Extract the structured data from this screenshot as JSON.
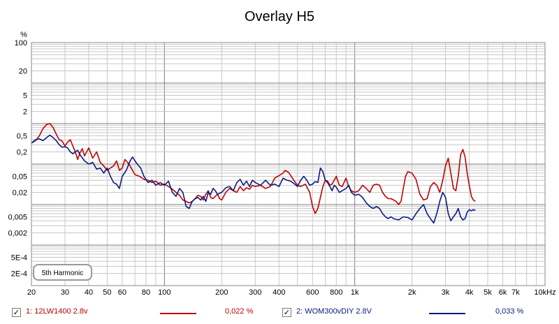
{
  "chart_data": {
    "type": "line",
    "title": "Overlay H5",
    "y_unit": "%",
    "x_scale": "log",
    "y_scale": "log",
    "xlim": [
      20,
      10000
    ],
    "ylim": [
      0.0001,
      100
    ],
    "grid": true,
    "x_ticks": [
      {
        "v": 20,
        "l": "20"
      },
      {
        "v": 30,
        "l": "30"
      },
      {
        "v": 40,
        "l": "40"
      },
      {
        "v": 50,
        "l": "50"
      },
      {
        "v": 60,
        "l": "60"
      },
      {
        "v": 80,
        "l": "80"
      },
      {
        "v": 100,
        "l": "100"
      },
      {
        "v": 200,
        "l": "200"
      },
      {
        "v": 300,
        "l": "300"
      },
      {
        "v": 400,
        "l": "400"
      },
      {
        "v": 600,
        "l": "600"
      },
      {
        "v": 800,
        "l": "800"
      },
      {
        "v": 1000,
        "l": "1k"
      },
      {
        "v": 2000,
        "l": "2k"
      },
      {
        "v": 3000,
        "l": "3k"
      },
      {
        "v": 4000,
        "l": "4k"
      },
      {
        "v": 5000,
        "l": "5k"
      },
      {
        "v": 6000,
        "l": "6k"
      },
      {
        "v": 7000,
        "l": "7k"
      },
      {
        "v": 10000,
        "l": "10kHz"
      }
    ],
    "y_ticks": [
      {
        "v": 100,
        "l": "100"
      },
      {
        "v": 20,
        "l": "20"
      },
      {
        "v": 5,
        "l": "5"
      },
      {
        "v": 2,
        "l": "2"
      },
      {
        "v": 0.5,
        "l": "0,5"
      },
      {
        "v": 0.2,
        "l": "0,2"
      },
      {
        "v": 0.05,
        "l": "0,05"
      },
      {
        "v": 0.02,
        "l": "0,02"
      },
      {
        "v": 0.005,
        "l": "0,005"
      },
      {
        "v": 0.002,
        "l": "0,002"
      },
      {
        "v": 0.0005,
        "l": "5E-4"
      },
      {
        "v": 0.0002,
        "l": "2E-4"
      }
    ],
    "annotation": "5th Harmonic",
    "series": [
      {
        "name": "1: 12LW1400 2.8v",
        "color": "#c00000",
        "summary": "0,022 %",
        "points": [
          [
            20,
            0.33
          ],
          [
            21,
            0.38
          ],
          [
            22,
            0.5
          ],
          [
            23,
            0.75
          ],
          [
            24,
            0.95
          ],
          [
            25,
            1.0
          ],
          [
            26,
            0.8
          ],
          [
            27,
            0.55
          ],
          [
            28,
            0.4
          ],
          [
            29,
            0.37
          ],
          [
            30,
            0.28
          ],
          [
            31,
            0.35
          ],
          [
            32,
            0.4
          ],
          [
            33,
            0.28
          ],
          [
            34,
            0.2
          ],
          [
            35,
            0.13
          ],
          [
            36,
            0.19
          ],
          [
            37,
            0.24
          ],
          [
            38,
            0.16
          ],
          [
            39,
            0.2
          ],
          [
            40,
            0.25
          ],
          [
            42,
            0.14
          ],
          [
            44,
            0.2
          ],
          [
            46,
            0.11
          ],
          [
            48,
            0.09
          ],
          [
            50,
            0.07
          ],
          [
            52,
            0.08
          ],
          [
            54,
            0.09
          ],
          [
            56,
            0.12
          ],
          [
            58,
            0.07
          ],
          [
            60,
            0.08
          ],
          [
            62,
            0.13
          ],
          [
            64,
            0.11
          ],
          [
            66,
            0.09
          ],
          [
            68,
            0.07
          ],
          [
            70,
            0.055
          ],
          [
            74,
            0.05
          ],
          [
            78,
            0.042
          ],
          [
            82,
            0.04
          ],
          [
            86,
            0.035
          ],
          [
            90,
            0.038
          ],
          [
            95,
            0.03
          ],
          [
            100,
            0.032
          ],
          [
            105,
            0.028
          ],
          [
            110,
            0.024
          ],
          [
            115,
            0.02
          ],
          [
            120,
            0.017
          ],
          [
            125,
            0.013
          ],
          [
            130,
            0.012
          ],
          [
            135,
            0.011
          ],
          [
            140,
            0.012
          ],
          [
            145,
            0.014
          ],
          [
            150,
            0.017
          ],
          [
            155,
            0.016
          ],
          [
            160,
            0.013
          ],
          [
            165,
            0.018
          ],
          [
            170,
            0.022
          ],
          [
            175,
            0.015
          ],
          [
            180,
            0.014
          ],
          [
            185,
            0.016
          ],
          [
            190,
            0.018
          ],
          [
            195,
            0.014
          ],
          [
            200,
            0.013
          ],
          [
            210,
            0.02
          ],
          [
            220,
            0.025
          ],
          [
            230,
            0.022
          ],
          [
            240,
            0.02
          ],
          [
            250,
            0.028
          ],
          [
            260,
            0.022
          ],
          [
            270,
            0.026
          ],
          [
            280,
            0.024
          ],
          [
            290,
            0.03
          ],
          [
            300,
            0.028
          ],
          [
            320,
            0.03
          ],
          [
            340,
            0.025
          ],
          [
            360,
            0.028
          ],
          [
            380,
            0.045
          ],
          [
            400,
            0.052
          ],
          [
            420,
            0.06
          ],
          [
            430,
            0.07
          ],
          [
            450,
            0.062
          ],
          [
            470,
            0.045
          ],
          [
            500,
            0.03
          ],
          [
            520,
            0.028
          ],
          [
            550,
            0.032
          ],
          [
            580,
            0.02
          ],
          [
            600,
            0.009
          ],
          [
            620,
            0.006
          ],
          [
            640,
            0.008
          ],
          [
            660,
            0.015
          ],
          [
            680,
            0.028
          ],
          [
            700,
            0.04
          ],
          [
            720,
            0.038
          ],
          [
            740,
            0.03
          ],
          [
            760,
            0.032
          ],
          [
            800,
            0.05
          ],
          [
            830,
            0.03
          ],
          [
            860,
            0.028
          ],
          [
            900,
            0.045
          ],
          [
            930,
            0.028
          ],
          [
            960,
            0.022
          ],
          [
            1000,
            0.02
          ],
          [
            1050,
            0.022
          ],
          [
            1100,
            0.03
          ],
          [
            1150,
            0.025
          ],
          [
            1200,
            0.02
          ],
          [
            1250,
            0.03
          ],
          [
            1300,
            0.032
          ],
          [
            1350,
            0.03
          ],
          [
            1400,
            0.02
          ],
          [
            1450,
            0.016
          ],
          [
            1500,
            0.014
          ],
          [
            1550,
            0.014
          ],
          [
            1600,
            0.013
          ],
          [
            1650,
            0.012
          ],
          [
            1700,
            0.01
          ],
          [
            1750,
            0.012
          ],
          [
            1800,
            0.025
          ],
          [
            1850,
            0.05
          ],
          [
            1900,
            0.065
          ],
          [
            2000,
            0.06
          ],
          [
            2100,
            0.042
          ],
          [
            2200,
            0.018
          ],
          [
            2300,
            0.013
          ],
          [
            2400,
            0.014
          ],
          [
            2500,
            0.028
          ],
          [
            2600,
            0.035
          ],
          [
            2700,
            0.03
          ],
          [
            2800,
            0.02
          ],
          [
            2900,
            0.04
          ],
          [
            3000,
            0.09
          ],
          [
            3100,
            0.14
          ],
          [
            3200,
            0.06
          ],
          [
            3300,
            0.025
          ],
          [
            3400,
            0.022
          ],
          [
            3500,
            0.05
          ],
          [
            3600,
            0.17
          ],
          [
            3700,
            0.23
          ],
          [
            3800,
            0.15
          ],
          [
            3900,
            0.06
          ],
          [
            4000,
            0.03
          ],
          [
            4100,
            0.016
          ],
          [
            4200,
            0.013
          ],
          [
            4300,
            0.012
          ]
        ]
      },
      {
        "name": "2: WOM300vDIY 2.8V",
        "color": "#0a1a80",
        "summary": "0,033 %",
        "points": [
          [
            20,
            0.33
          ],
          [
            21,
            0.4
          ],
          [
            22,
            0.42
          ],
          [
            23,
            0.38
          ],
          [
            24,
            0.45
          ],
          [
            25,
            0.52
          ],
          [
            26,
            0.45
          ],
          [
            27,
            0.38
          ],
          [
            28,
            0.3
          ],
          [
            29,
            0.26
          ],
          [
            30,
            0.27
          ],
          [
            31,
            0.25
          ],
          [
            32,
            0.2
          ],
          [
            33,
            0.18
          ],
          [
            34,
            0.2
          ],
          [
            35,
            0.22
          ],
          [
            36,
            0.17
          ],
          [
            38,
            0.12
          ],
          [
            40,
            0.1
          ],
          [
            42,
            0.11
          ],
          [
            44,
            0.075
          ],
          [
            46,
            0.08
          ],
          [
            48,
            0.06
          ],
          [
            50,
            0.08
          ],
          [
            52,
            0.05
          ],
          [
            54,
            0.035
          ],
          [
            56,
            0.032
          ],
          [
            58,
            0.025
          ],
          [
            60,
            0.05
          ],
          [
            63,
            0.07
          ],
          [
            66,
            0.12
          ],
          [
            68,
            0.15
          ],
          [
            70,
            0.12
          ],
          [
            72,
            0.1
          ],
          [
            75,
            0.08
          ],
          [
            78,
            0.05
          ],
          [
            82,
            0.035
          ],
          [
            86,
            0.04
          ],
          [
            90,
            0.03
          ],
          [
            95,
            0.035
          ],
          [
            100,
            0.03
          ],
          [
            105,
            0.038
          ],
          [
            110,
            0.02
          ],
          [
            115,
            0.016
          ],
          [
            120,
            0.025
          ],
          [
            125,
            0.02
          ],
          [
            130,
            0.009
          ],
          [
            135,
            0.008
          ],
          [
            140,
            0.012
          ],
          [
            145,
            0.014
          ],
          [
            150,
            0.015
          ],
          [
            155,
            0.013
          ],
          [
            160,
            0.016
          ],
          [
            165,
            0.012
          ],
          [
            170,
            0.02
          ],
          [
            175,
            0.018
          ],
          [
            180,
            0.025
          ],
          [
            185,
            0.022
          ],
          [
            190,
            0.018
          ],
          [
            200,
            0.02
          ],
          [
            210,
            0.026
          ],
          [
            220,
            0.028
          ],
          [
            230,
            0.022
          ],
          [
            240,
            0.035
          ],
          [
            250,
            0.042
          ],
          [
            260,
            0.03
          ],
          [
            270,
            0.038
          ],
          [
            280,
            0.028
          ],
          [
            290,
            0.04
          ],
          [
            300,
            0.035
          ],
          [
            320,
            0.03
          ],
          [
            340,
            0.04
          ],
          [
            360,
            0.03
          ],
          [
            380,
            0.032
          ],
          [
            400,
            0.028
          ],
          [
            420,
            0.045
          ],
          [
            440,
            0.04
          ],
          [
            460,
            0.038
          ],
          [
            480,
            0.033
          ],
          [
            500,
            0.028
          ],
          [
            520,
            0.04
          ],
          [
            540,
            0.05
          ],
          [
            560,
            0.04
          ],
          [
            580,
            0.03
          ],
          [
            600,
            0.032
          ],
          [
            620,
            0.037
          ],
          [
            640,
            0.035
          ],
          [
            660,
            0.08
          ],
          [
            680,
            0.065
          ],
          [
            700,
            0.04
          ],
          [
            720,
            0.035
          ],
          [
            740,
            0.028
          ],
          [
            760,
            0.022
          ],
          [
            780,
            0.03
          ],
          [
            800,
            0.027
          ],
          [
            830,
            0.02
          ],
          [
            860,
            0.022
          ],
          [
            900,
            0.025
          ],
          [
            930,
            0.03
          ],
          [
            960,
            0.02
          ],
          [
            1000,
            0.017
          ],
          [
            1050,
            0.018
          ],
          [
            1100,
            0.015
          ],
          [
            1150,
            0.011
          ],
          [
            1200,
            0.009
          ],
          [
            1250,
            0.008
          ],
          [
            1300,
            0.009
          ],
          [
            1350,
            0.008
          ],
          [
            1400,
            0.006
          ],
          [
            1450,
            0.005
          ],
          [
            1500,
            0.0045
          ],
          [
            1550,
            0.005
          ],
          [
            1600,
            0.0045
          ],
          [
            1700,
            0.0042
          ],
          [
            1800,
            0.005
          ],
          [
            1900,
            0.0048
          ],
          [
            2000,
            0.0042
          ],
          [
            2100,
            0.006
          ],
          [
            2200,
            0.008
          ],
          [
            2300,
            0.01
          ],
          [
            2400,
            0.006
          ],
          [
            2500,
            0.0045
          ],
          [
            2600,
            0.0035
          ],
          [
            2700,
            0.006
          ],
          [
            2800,
            0.012
          ],
          [
            2900,
            0.02
          ],
          [
            3000,
            0.015
          ],
          [
            3100,
            0.006
          ],
          [
            3200,
            0.004
          ],
          [
            3300,
            0.005
          ],
          [
            3400,
            0.006
          ],
          [
            3500,
            0.008
          ],
          [
            3600,
            0.005
          ],
          [
            3700,
            0.0042
          ],
          [
            3800,
            0.0045
          ],
          [
            3900,
            0.0065
          ],
          [
            4000,
            0.0075
          ],
          [
            4100,
            0.007
          ],
          [
            4200,
            0.0075
          ],
          [
            4300,
            0.0072
          ]
        ]
      }
    ]
  },
  "legend": [
    {
      "checked": true,
      "label": "1: 12LW1400 2.8v",
      "value": "0,022 %",
      "color": "#c00000"
    },
    {
      "checked": true,
      "label": "2: WOM300vDIY 2.8V",
      "value": "0,033 %",
      "color": "#0a1a80"
    }
  ]
}
